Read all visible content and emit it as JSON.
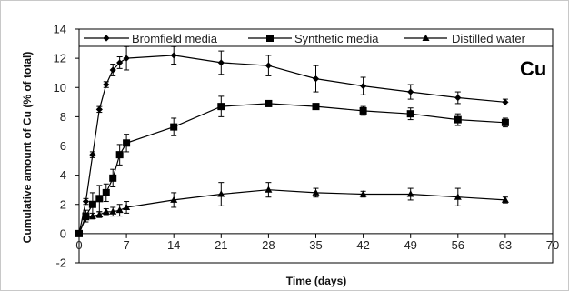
{
  "chart_data": {
    "type": "line",
    "panel_label": "Cu",
    "xlabel": "Time (days)",
    "ylabel": "Cumulative amount of Cu (% of total)",
    "xlim": [
      0,
      70
    ],
    "ylim": [
      -2,
      14
    ],
    "x_ticks": [
      0,
      7,
      14,
      21,
      28,
      35,
      42,
      49,
      56,
      63,
      70
    ],
    "y_ticks": [
      -2,
      0,
      2,
      4,
      6,
      8,
      10,
      12,
      14
    ],
    "grid": false,
    "legend_position": "top",
    "series": [
      {
        "name": "Bromfield media",
        "marker": "diamond",
        "color": "#000000",
        "x": [
          0,
          1,
          2,
          3,
          4,
          5,
          6,
          7,
          14,
          21,
          28,
          35,
          42,
          49,
          56,
          63
        ],
        "y": [
          0,
          2.2,
          5.4,
          8.5,
          10.2,
          11.2,
          11.7,
          12.0,
          12.2,
          11.7,
          11.5,
          10.6,
          10.1,
          9.7,
          9.3,
          9.0
        ],
        "err": [
          0,
          0.2,
          0.2,
          0.2,
          0.2,
          0.4,
          0.4,
          0.8,
          0.6,
          0.8,
          0.7,
          0.9,
          0.6,
          0.5,
          0.4,
          0.2
        ]
      },
      {
        "name": "Synthetic media",
        "marker": "square",
        "color": "#000000",
        "x": [
          0,
          1,
          2,
          3,
          4,
          5,
          6,
          7,
          14,
          21,
          28,
          35,
          42,
          49,
          56,
          63
        ],
        "y": [
          0,
          1.2,
          2.0,
          2.4,
          2.8,
          3.8,
          5.4,
          6.2,
          7.3,
          8.7,
          8.9,
          8.7,
          8.4,
          8.2,
          7.8,
          7.6
        ],
        "err": [
          0,
          0.4,
          0.8,
          0.9,
          0.6,
          0.6,
          0.7,
          0.6,
          0.6,
          0.7,
          0.2,
          0.2,
          0.3,
          0.4,
          0.4,
          0.3
        ]
      },
      {
        "name": "Distilled water",
        "marker": "triangle",
        "color": "#000000",
        "x": [
          0,
          1,
          2,
          3,
          4,
          5,
          6,
          7,
          14,
          21,
          28,
          35,
          42,
          49,
          56,
          63
        ],
        "y": [
          0,
          1.1,
          1.2,
          1.3,
          1.5,
          1.5,
          1.6,
          1.8,
          2.3,
          2.7,
          3.0,
          2.8,
          2.7,
          2.7,
          2.5,
          2.3
        ],
        "err": [
          0,
          0.1,
          0.2,
          0.2,
          0.2,
          0.3,
          0.4,
          0.4,
          0.5,
          0.8,
          0.5,
          0.3,
          0.2,
          0.4,
          0.6,
          0.2
        ]
      }
    ]
  }
}
